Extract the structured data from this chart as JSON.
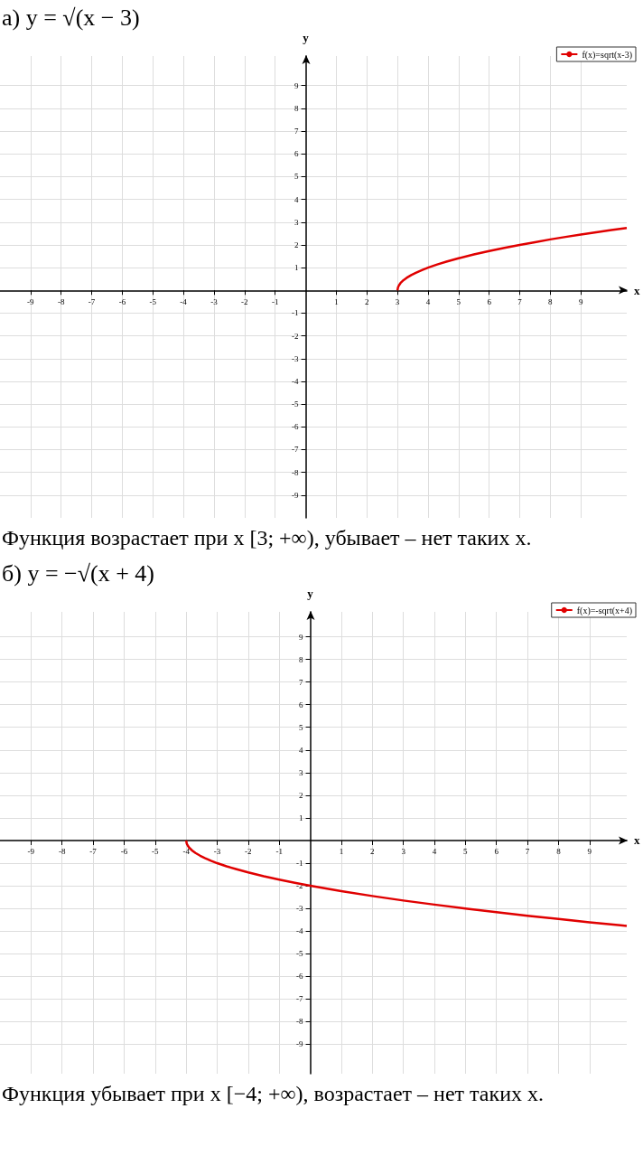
{
  "chart_data": [
    {
      "type": "line",
      "title": "а) y = √(x − 3)",
      "xlabel": "x",
      "ylabel": "y",
      "xlim": [
        -10,
        10.5
      ],
      "ylim": [
        -10,
        10.3
      ],
      "xticks": [
        -9,
        -8,
        -7,
        -6,
        -5,
        -4,
        -3,
        -2,
        -1,
        1,
        2,
        3,
        4,
        5,
        6,
        7,
        8,
        9
      ],
      "yticks": [
        -9,
        -8,
        -7,
        -6,
        -5,
        -4,
        -3,
        -2,
        -1,
        1,
        2,
        3,
        4,
        5,
        6,
        7,
        8,
        9
      ],
      "grid": true,
      "legend": "top right",
      "marker": "none",
      "x": [
        3,
        3.02,
        3.05,
        3.1,
        3.2,
        3.3,
        3.45,
        3.6,
        3.8,
        4,
        4.3,
        4.6,
        5,
        5.5,
        6,
        6.5,
        7,
        7.5,
        8,
        8.5,
        9,
        9.5,
        10,
        10.5
      ],
      "series": [
        {
          "name": "f(x)=sqrt(x-3)",
          "color": "#e00000",
          "values": [
            0,
            0.14,
            0.22,
            0.32,
            0.45,
            0.55,
            0.67,
            0.77,
            0.89,
            1,
            1.14,
            1.26,
            1.41,
            1.58,
            1.73,
            1.87,
            2,
            2.12,
            2.24,
            2.35,
            2.45,
            2.55,
            2.65,
            2.74
          ]
        }
      ],
      "annotations": [
        "Функция возрастает при x [3;  +∞), убывает – нет таких x."
      ]
    },
    {
      "type": "line",
      "title": "б) y = −√(x + 4)",
      "xlabel": "x",
      "ylabel": "y",
      "xlim": [
        -10,
        10.2
      ],
      "ylim": [
        -10.3,
        10.1
      ],
      "xticks": [
        -9,
        -8,
        -7,
        -6,
        -5,
        -4,
        -3,
        -2,
        -1,
        1,
        2,
        3,
        4,
        5,
        6,
        7,
        8,
        9
      ],
      "yticks": [
        -9,
        -8,
        -7,
        -6,
        -5,
        -4,
        -3,
        -2,
        -1,
        1,
        2,
        3,
        4,
        5,
        6,
        7,
        8,
        9
      ],
      "grid": true,
      "legend": "top right",
      "marker": "none",
      "x": [
        -4,
        -3.98,
        -3.95,
        -3.9,
        -3.8,
        -3.7,
        -3.55,
        -3.4,
        -3.2,
        -3,
        -2.7,
        -2.4,
        -2,
        -1.5,
        -1,
        -0.5,
        0,
        1,
        2,
        3,
        4,
        5,
        6,
        7,
        8,
        9,
        10,
        10.2
      ],
      "series": [
        {
          "name": "f(x)=-sqrt(x+4)",
          "color": "#e00000",
          "values": [
            0,
            -0.14,
            -0.22,
            -0.32,
            -0.45,
            -0.55,
            -0.67,
            -0.77,
            -0.89,
            -1,
            -1.14,
            -1.26,
            -1.41,
            -1.58,
            -1.73,
            -1.87,
            -2,
            -2.24,
            -2.45,
            -2.65,
            -2.83,
            -3,
            -3.16,
            -3.32,
            -3.46,
            -3.61,
            -3.74,
            -3.77
          ]
        }
      ],
      "annotations": [
        "Функция убывает при x [−4; +∞), возрастает – нет таких x."
      ]
    }
  ]
}
